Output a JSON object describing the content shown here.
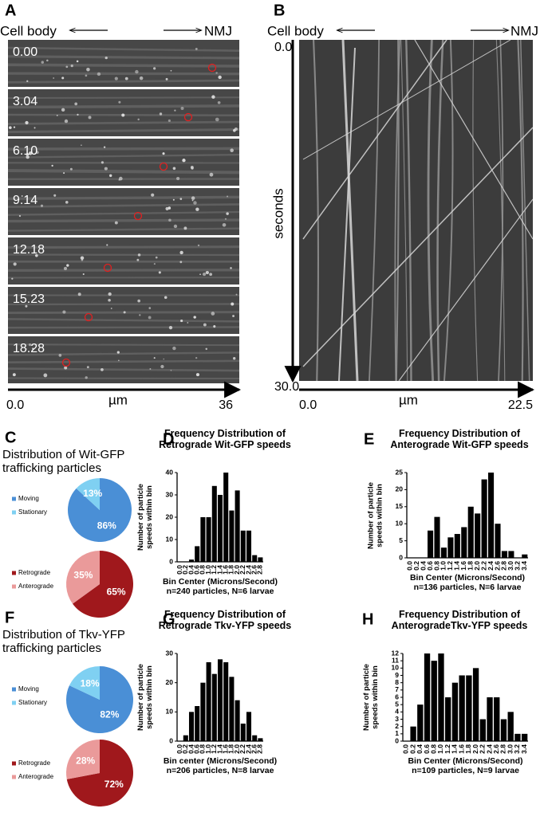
{
  "figure": {
    "a": {
      "letter": "A",
      "left": "Cell body",
      "right": "NMJ",
      "times": [
        "0.00",
        "3.04",
        "6.10",
        "9.14",
        "12.18",
        "15.23",
        "18.28"
      ],
      "x_start": "0.0",
      "x_unit": "µm",
      "x_end": "36"
    },
    "b": {
      "letter": "B",
      "left": "Cell body",
      "right": "NMJ",
      "y_start": "0.0",
      "y_label": "seconds",
      "y_end": "30.0",
      "x_start": "0.0",
      "x_unit": "µm",
      "x_end": "22.5"
    },
    "c": {
      "letter": "C",
      "title": "Distribution of Wit-GFP trafficking particles"
    },
    "f": {
      "letter": "F",
      "title": "Distribution of Tkv-YFP trafficking particles"
    }
  },
  "chart_data": [
    {
      "type": "pie",
      "categories": [
        "Moving",
        "Stationary"
      ],
      "values": [
        86,
        13
      ],
      "value_labels": [
        "86%",
        "13%"
      ],
      "colors": [
        "#4a8fd6",
        "#7fd0f2"
      ]
    },
    {
      "type": "pie",
      "categories": [
        "Retrograde",
        "Anterograde"
      ],
      "values": [
        65,
        35
      ],
      "value_labels": [
        "65%",
        "35%"
      ],
      "colors": [
        "#a0181c",
        "#ea9a9a"
      ]
    },
    {
      "type": "bar",
      "panel": "D",
      "title": "Frequency Distribution of Retrograde Wit-GFP speeds",
      "xlabel": "Bin Center (Microns/Second)",
      "ylabel": "Number of particle speeds within bin",
      "note": "n=240 particles, N=6 larvae",
      "categories": [
        "0.0",
        "0.2",
        "0.4",
        "0.6",
        "0.8",
        "1.0",
        "1.2",
        "1.4",
        "1.6",
        "1.8",
        "2.0",
        "2.2",
        "2.4",
        "2.6",
        "2.8"
      ],
      "values": [
        0,
        0,
        1,
        7,
        20,
        20,
        34,
        30,
        40,
        23,
        32,
        14,
        14,
        3,
        2
      ],
      "color": "#000000",
      "ylim": [
        0,
        40
      ],
      "yticks": [
        0,
        10,
        20,
        30,
        40
      ]
    },
    {
      "type": "bar",
      "panel": "E",
      "title": "Frequency Distribution of Anterograde Wit-GFP speeds",
      "xlabel": "Bin Center (Microns/Second)",
      "ylabel": "Number of particle speeds within bin",
      "note": "n=136 particles, N=6 larvae",
      "categories": [
        "0.0",
        "0.2",
        "0.4",
        "0.6",
        "0.8",
        "1.0",
        "1.2",
        "1.4",
        "1.6",
        "1.8",
        "2.0",
        "2.2",
        "2.4",
        "2.6",
        "2.8",
        "3.0",
        "3.2",
        "3.4"
      ],
      "values": [
        0,
        0,
        0,
        8,
        12,
        3,
        6,
        7,
        9,
        15,
        13,
        23,
        25,
        10,
        2,
        2,
        0,
        1
      ],
      "color": "#000000",
      "ylim": [
        0,
        25
      ],
      "yticks": [
        0,
        5,
        10,
        15,
        20,
        25
      ]
    },
    {
      "type": "pie",
      "categories": [
        "Moving",
        "Stationary"
      ],
      "values": [
        82,
        18
      ],
      "value_labels": [
        "82%",
        "18%"
      ],
      "colors": [
        "#4a8fd6",
        "#7fd0f2"
      ]
    },
    {
      "type": "pie",
      "categories": [
        "Retrograde",
        "Anterograde"
      ],
      "values": [
        72,
        28
      ],
      "value_labels": [
        "72%",
        "28%"
      ],
      "colors": [
        "#a0181c",
        "#ea9a9a"
      ]
    },
    {
      "type": "bar",
      "panel": "G",
      "title": "Frequency Distribution of Retrograde Tkv-YFP speeds",
      "xlabel": "Bin center (Microns/Second)",
      "ylabel": "Number of particle speeds within bin",
      "note": "n=206 particles, N=8 larvae",
      "categories": [
        "0.0",
        "0.2",
        "0.4",
        "0.6",
        "0.8",
        "1.0",
        "1.2",
        "1.4",
        "1.6",
        "1.8",
        "2.0",
        "2.2",
        "2.4",
        "2.6",
        "2.8"
      ],
      "values": [
        0,
        2,
        10,
        12,
        20,
        27,
        23,
        28,
        27,
        22,
        14,
        6,
        10,
        2,
        1
      ],
      "color": "#000000",
      "ylim": [
        0,
        30
      ],
      "yticks": [
        0,
        10,
        20,
        30
      ]
    },
    {
      "type": "bar",
      "panel": "H",
      "title": "Frequency Distribution of AnterogradeTkv-YFP speeds",
      "xlabel": "Bin Center (Microns/Second)",
      "ylabel": "Number of particle speeds within bin",
      "note": "n=109 particles, N=9 larvae",
      "categories": [
        "0.0",
        "0.2",
        "0.4",
        "0.6",
        "0.8",
        "1.0",
        "1.2",
        "1.4",
        "1.6",
        "1.8",
        "2.0",
        "2.2",
        "2.4",
        "2.6",
        "2.8",
        "3.0",
        "3.2",
        "3.4"
      ],
      "values": [
        0,
        2,
        5,
        12,
        11,
        12,
        6,
        8,
        9,
        9,
        10,
        3,
        6,
        6,
        3,
        4,
        1,
        1
      ],
      "color": "#000000",
      "ylim": [
        0,
        12
      ],
      "yticks": [
        0,
        1,
        2,
        3,
        4,
        5,
        6,
        7,
        8,
        9,
        10,
        11,
        12
      ]
    }
  ]
}
